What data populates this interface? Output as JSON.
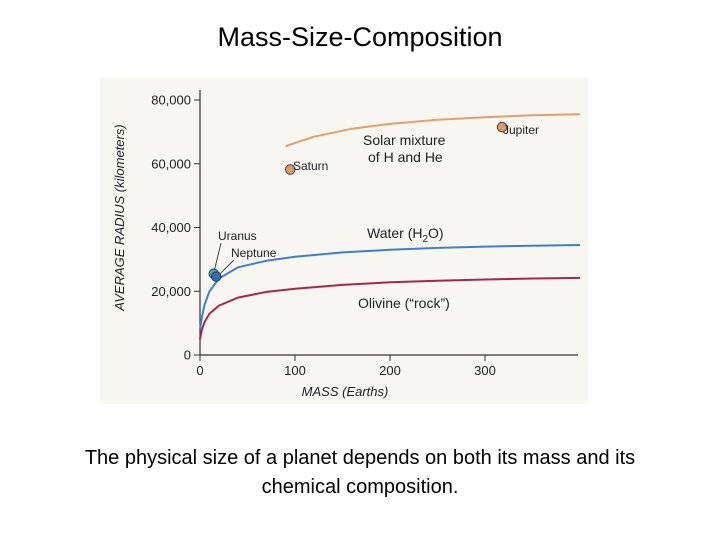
{
  "slide": {
    "title": "Mass-Size-Composition",
    "caption": "The physical size of a planet depends on both its mass and its chemical composition."
  },
  "chart_data": {
    "type": "line",
    "xlabel": "MASS (Earths)",
    "ylabel": "AVERAGE RADIUS (kilometers)",
    "xlim": [
      0,
      400
    ],
    "ylim": [
      0,
      80000
    ],
    "x_ticks": [
      "0",
      "100",
      "200",
      "300"
    ],
    "x_tick_values": [
      0,
      100,
      200,
      300
    ],
    "y_ticks": [
      "0",
      "20,000",
      "40,000",
      "60,000",
      "80,000"
    ],
    "y_tick_values": [
      0,
      20000,
      40000,
      60000,
      80000
    ],
    "grid": false,
    "series": [
      {
        "name": "Solar mixture of H and He",
        "label_lines": [
          "Solar mixture",
          "of H and He"
        ],
        "color": "#e0a070",
        "x": [
          90,
          120,
          160,
          200,
          250,
          300,
          350,
          400
        ],
        "y": [
          65500,
          68500,
          71000,
          72500,
          73800,
          74600,
          75200,
          75500
        ]
      },
      {
        "name": "Water (H2O)",
        "label_parts": [
          "Water (H",
          "2",
          "O)"
        ],
        "color": "#3f7fcf",
        "x": [
          0,
          2,
          5,
          10,
          20,
          40,
          70,
          100,
          150,
          200,
          250,
          300,
          350,
          400
        ],
        "y": [
          8000,
          12000,
          16000,
          20000,
          24000,
          27500,
          29600,
          30800,
          32200,
          33000,
          33600,
          34000,
          34300,
          34500
        ]
      },
      {
        "name": "Olivine (“rock”)",
        "color": "#a52848",
        "x": [
          0,
          2,
          5,
          10,
          20,
          40,
          70,
          100,
          150,
          200,
          250,
          300,
          350,
          400
        ],
        "y": [
          5000,
          8000,
          10500,
          13000,
          15500,
          18000,
          19800,
          20800,
          22000,
          22800,
          23300,
          23700,
          24000,
          24200
        ]
      }
    ],
    "points": [
      {
        "name": "Jupiter",
        "x": 318,
        "y": 71500,
        "color": "#d99a6c"
      },
      {
        "name": "Saturn",
        "x": 95,
        "y": 58200,
        "color": "#d99a6c"
      },
      {
        "name": "Uranus",
        "x": 14.5,
        "y": 25500,
        "color": "#4aa6b0"
      },
      {
        "name": "Neptune",
        "x": 17.1,
        "y": 24600,
        "color": "#2f6fb8"
      }
    ]
  }
}
